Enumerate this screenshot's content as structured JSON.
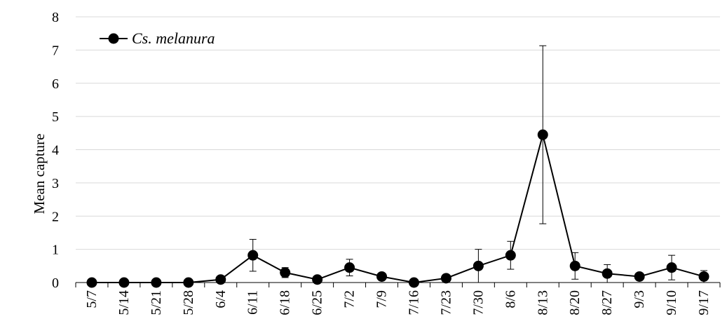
{
  "chart_data": {
    "type": "line",
    "title": "",
    "xlabel": "",
    "ylabel": "Mean capture",
    "ylim": [
      0,
      8
    ],
    "yticks": [
      0,
      1,
      2,
      3,
      4,
      5,
      6,
      7,
      8
    ],
    "grid": "horizontal",
    "legend_position": "top-left",
    "categories": [
      "5/7",
      "5/14",
      "5/21",
      "5/28",
      "6/4",
      "6/11",
      "6/18",
      "6/25",
      "7/2",
      "7/9",
      "7/16",
      "7/23",
      "7/30",
      "8/6",
      "8/13",
      "8/20",
      "8/27",
      "9/3",
      "9/10",
      "9/17"
    ],
    "series": [
      {
        "name": "Cs. melanura",
        "color": "#000000",
        "marker": "circle",
        "values": [
          0,
          0,
          0,
          0,
          0.09,
          0.82,
          0.3,
          0.09,
          0.45,
          0.18,
          0,
          0.13,
          0.5,
          0.82,
          4.45,
          0.5,
          0.27,
          0.18,
          0.45,
          0.18
        ],
        "error": [
          0,
          0,
          0,
          0,
          0,
          0.48,
          0.15,
          0,
          0.25,
          0.1,
          0,
          0.1,
          0.5,
          0.42,
          2.68,
          0.4,
          0.27,
          0.1,
          0.37,
          0.18
        ]
      }
    ]
  }
}
